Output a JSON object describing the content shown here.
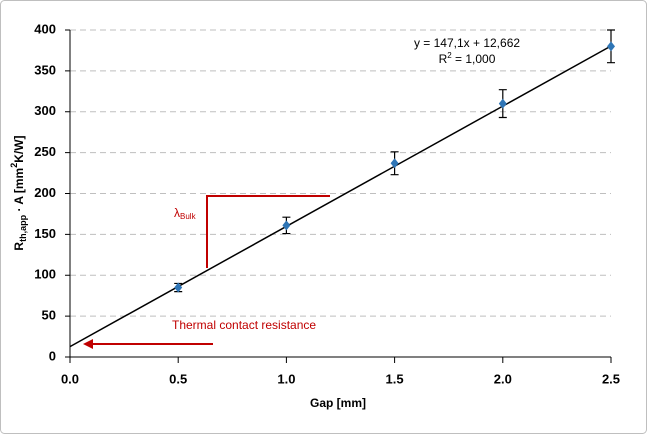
{
  "chart_data": {
    "type": "scatter",
    "x_label": "Gap [mm]",
    "y_label": [
      "R",
      "th,app",
      " · A [mm",
      "2",
      "K/W]"
    ],
    "series": [
      {
        "color": "#2e75b6",
        "x": [
          0.5,
          1.0,
          1.5,
          2.0,
          2.5
        ],
        "values": [
          85,
          161,
          237,
          310,
          380
        ],
        "errors": [
          5,
          10,
          14,
          17,
          20
        ]
      }
    ],
    "trendline": {
      "color": "#000000",
      "x": [
        0,
        2.5
      ],
      "values": [
        12.662,
        380.412
      ],
      "equation": "y = 147,1x + 12,662",
      "r2": [
        "R",
        "2",
        " = 1,000"
      ]
    },
    "annotations": {
      "contact": "Thermal contact resistance",
      "lambda": [
        "λ",
        "Bulk"
      ]
    },
    "xlim": [
      0,
      2.5
    ],
    "xticks": [
      {
        "value": 0,
        "label": "0.0"
      },
      {
        "value": 0.5,
        "label": "0.5"
      },
      {
        "value": 1,
        "label": "1.0"
      },
      {
        "value": 1.5,
        "label": "1.5"
      },
      {
        "value": 2,
        "label": "2.0"
      },
      {
        "value": 2.5,
        "label": "2.5"
      }
    ],
    "ylim": [
      0,
      400
    ],
    "yticks": [
      0,
      50,
      100,
      150,
      200,
      250,
      300,
      350,
      400
    ],
    "grid": true
  }
}
